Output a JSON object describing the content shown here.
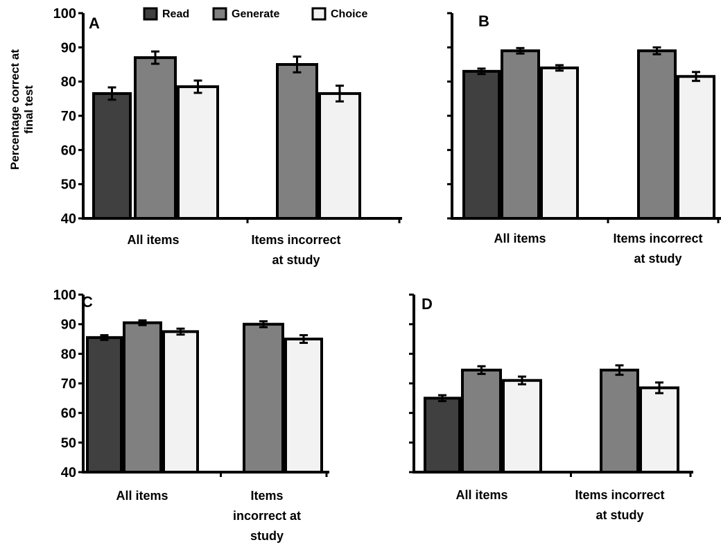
{
  "chart_data": [
    {
      "type": "bar",
      "panel": "A",
      "ylabel": "Percentage correct at final test",
      "ylim": [
        40,
        100
      ],
      "yticks": [
        40,
        50,
        60,
        70,
        80,
        90,
        100
      ],
      "show_ytick_labels": true,
      "categories": [
        [
          "All items"
        ],
        [
          "Items incorrect",
          "at study"
        ]
      ],
      "series": [
        {
          "name": "Read",
          "values": [
            76.5,
            null
          ],
          "errors": [
            1.8,
            null
          ]
        },
        {
          "name": "Generate",
          "values": [
            87,
            85
          ],
          "errors": [
            1.8,
            2.3
          ]
        },
        {
          "name": "Choice",
          "values": [
            78.5,
            76.5
          ],
          "errors": [
            1.8,
            2.3
          ]
        }
      ]
    },
    {
      "type": "bar",
      "panel": "B",
      "ylim": [
        40,
        100
      ],
      "yticks": [
        40,
        50,
        60,
        70,
        80,
        90,
        100
      ],
      "show_ytick_labels": false,
      "categories": [
        [
          "All items"
        ],
        [
          "Items incorrect",
          "at study"
        ]
      ],
      "series": [
        {
          "name": "Read",
          "values": [
            83,
            null
          ],
          "errors": [
            0.8,
            null
          ]
        },
        {
          "name": "Generate",
          "values": [
            89,
            89
          ],
          "errors": [
            0.8,
            1.0
          ]
        },
        {
          "name": "Choice",
          "values": [
            84,
            81.5
          ],
          "errors": [
            0.8,
            1.3
          ]
        }
      ]
    },
    {
      "type": "bar",
      "panel": "C",
      "ylim": [
        40,
        100
      ],
      "yticks": [
        40,
        50,
        60,
        70,
        80,
        90,
        100
      ],
      "show_ytick_labels": true,
      "categories": [
        [
          "All items"
        ],
        [
          "Items",
          "incorrect at",
          "study"
        ]
      ],
      "series": [
        {
          "name": "Read",
          "values": [
            85.5,
            null
          ],
          "errors": [
            0.8,
            null
          ]
        },
        {
          "name": "Generate",
          "values": [
            90.5,
            90
          ],
          "errors": [
            0.8,
            1.0
          ]
        },
        {
          "name": "Choice",
          "values": [
            87.5,
            85
          ],
          "errors": [
            1.0,
            1.3
          ]
        }
      ]
    },
    {
      "type": "bar",
      "panel": "D",
      "ylim": [
        40,
        100
      ],
      "yticks": [
        40,
        50,
        60,
        70,
        80,
        90,
        100
      ],
      "show_ytick_labels": false,
      "categories": [
        [
          "All items"
        ],
        [
          "Items incorrect",
          "at study"
        ]
      ],
      "series": [
        {
          "name": "Read",
          "values": [
            65,
            null
          ],
          "errors": [
            1.0,
            null
          ]
        },
        {
          "name": "Generate",
          "values": [
            74.5,
            74.5
          ],
          "errors": [
            1.3,
            1.6
          ]
        },
        {
          "name": "Choice",
          "values": [
            71,
            68.5
          ],
          "errors": [
            1.3,
            1.8
          ]
        }
      ]
    }
  ],
  "legend": {
    "placement": "top",
    "items": [
      {
        "label": "Read",
        "color": "#404040"
      },
      {
        "label": "Generate",
        "color": "#808080"
      },
      {
        "label": "Choice",
        "color": "#f2f2f2"
      }
    ]
  },
  "colors": {
    "read": "#404040",
    "generate": "#808080",
    "choice": "#f2f2f2",
    "stroke": "#000000"
  }
}
